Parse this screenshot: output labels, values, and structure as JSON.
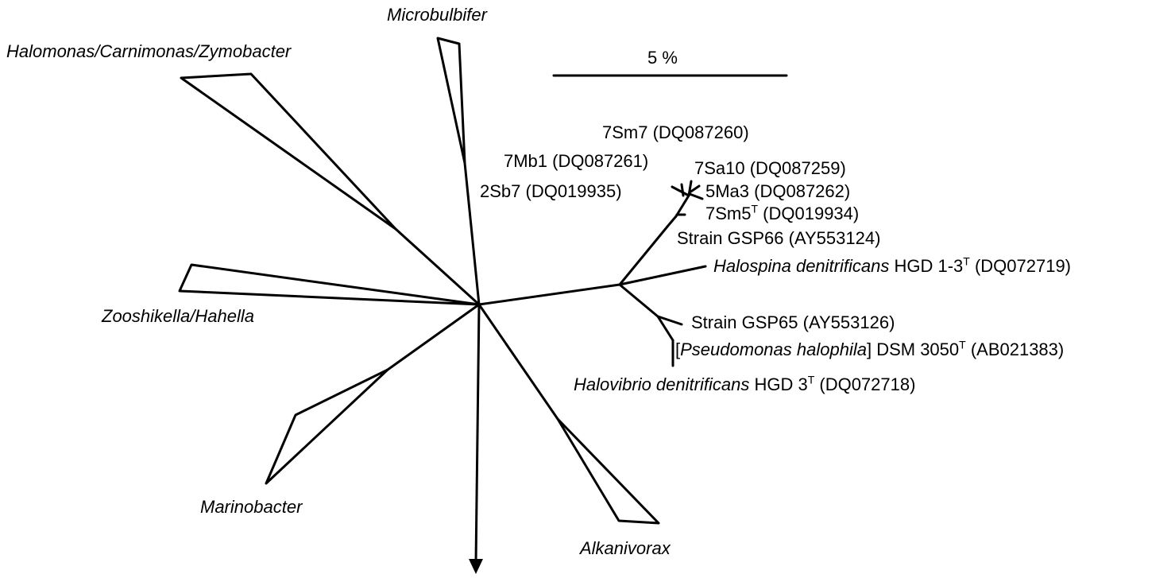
{
  "figure": {
    "scale_bar_label": "5 %",
    "clade_labels": {
      "microbulbifer": "Microbulbifer",
      "halomonas": "Halomonas/Carnimonas/Zymobacter",
      "zooshikella": "Zooshikella/Hahella",
      "marinobacter": "Marinobacter",
      "alkanivorax": "Alkanivorax"
    },
    "leaf_labels": {
      "sm7": "7Sm7 (DQ087260)",
      "mb1": "7Mb1 (DQ087261)",
      "sa10": "7Sa10 (DQ087259)",
      "sb7": "2Sb7 (DQ019935)",
      "ma3": "5Ma3 (DQ087262)",
      "sm5_name": "7Sm5",
      "sm5_sup": "T",
      "sm5_acc": " (DQ019934)",
      "gsp66": "Strain GSP66 (AY553124)",
      "halospina_genus": "Halospina denitrificans",
      "halospina_strain": " HGD 1-3",
      "halospina_sup": "T",
      "halospina_acc": " (DQ072719)",
      "gsp65": "Strain GSP65 (AY553126)",
      "pseudo_open": "[",
      "pseudo_genus": "Pseudomonas halophila",
      "pseudo_close": "] DSM 3050",
      "pseudo_sup": "T",
      "pseudo_acc": " (AB021383)",
      "halovibrio_genus": "Halovibrio denitrificans",
      "halovibrio_strain": " HGD 3",
      "halovibrio_sup": "T",
      "halovibrio_acc": " (DQ072718)"
    },
    "arrow_direction": "down"
  }
}
